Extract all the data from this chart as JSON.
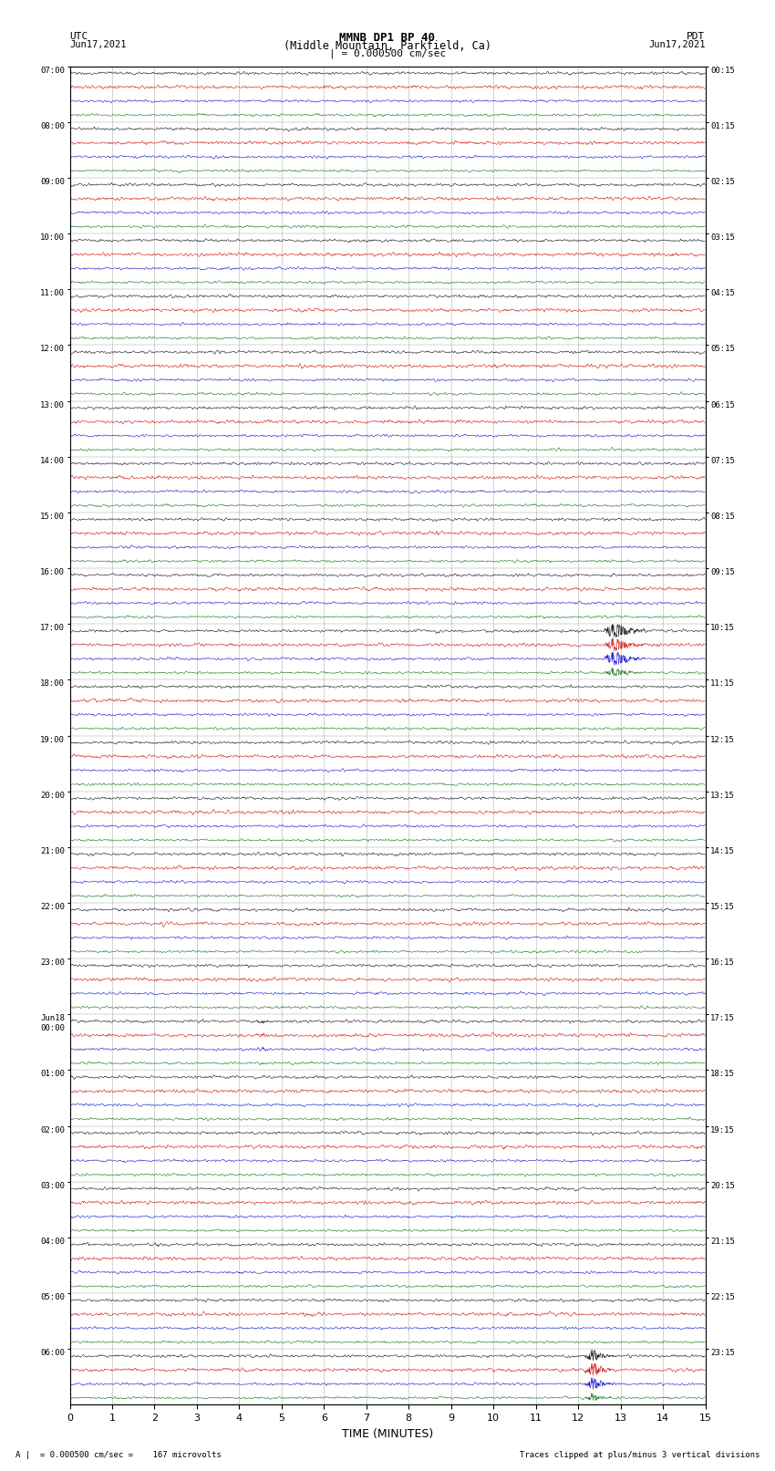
{
  "title_line1": "MMNB DP1 BP 40",
  "title_line2": "(Middle Mountain, Parkfield, Ca)",
  "scale_label": "| = 0.000500 cm/sec",
  "footer_left": "A |  = 0.000500 cm/sec =    167 microvolts",
  "footer_right": "Traces clipped at plus/minus 3 vertical divisions",
  "utc_label": "UTC",
  "pdt_label": "PDT",
  "date_left": "Jun17,2021",
  "date_right": "Jun17,2021",
  "xlabel": "TIME (MINUTES)",
  "xlim": [
    0,
    15
  ],
  "xticks": [
    0,
    1,
    2,
    3,
    4,
    5,
    6,
    7,
    8,
    9,
    10,
    11,
    12,
    13,
    14,
    15
  ],
  "bg_color": "white",
  "trace_colors": [
    "#000000",
    "#cc0000",
    "#0000cc",
    "#006600"
  ],
  "rows_per_hour": 4,
  "fig_width": 8.5,
  "fig_height": 16.13,
  "left_labels": [
    "07:00",
    "08:00",
    "09:00",
    "10:00",
    "11:00",
    "12:00",
    "13:00",
    "14:00",
    "15:00",
    "16:00",
    "17:00",
    "18:00",
    "19:00",
    "20:00",
    "21:00",
    "22:00",
    "23:00",
    "Jun18\n00:00",
    "01:00",
    "02:00",
    "03:00",
    "04:00",
    "05:00",
    "06:00"
  ],
  "right_labels": [
    "00:15",
    "01:15",
    "02:15",
    "03:15",
    "04:15",
    "05:15",
    "06:15",
    "07:15",
    "08:15",
    "09:15",
    "10:15",
    "11:15",
    "12:15",
    "13:15",
    "14:15",
    "15:15",
    "16:15",
    "17:15",
    "18:15",
    "19:15",
    "20:15",
    "21:15",
    "22:15",
    "23:15"
  ]
}
